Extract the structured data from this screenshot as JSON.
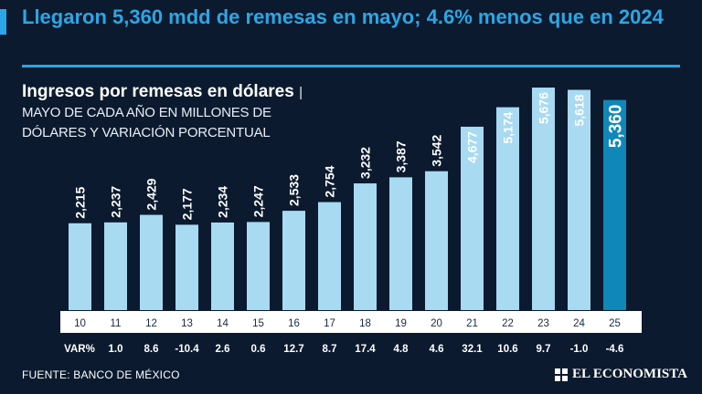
{
  "headline": "Llegaron 5,360 mdd de remesas en mayo; 4.6% menos que en 2024",
  "source": "FUENTE: BANCO DE MÉXICO",
  "brand": "EL ECONOMISTA",
  "colors": {
    "background": "#0b1a2e",
    "accent": "#2aa7e6",
    "bar": "#a8daf2",
    "bar_highlight": "#0f87b8",
    "axis_band": "#ffffff"
  },
  "chart_data": {
    "type": "bar",
    "title": "Ingresos por remesas en dólares",
    "subtitle": "| MAYO DE CADA AÑO EN MILLONES DE DÓLARES Y VARIACIÓN PORCENTUAL",
    "categories": [
      "10",
      "11",
      "12",
      "13",
      "14",
      "15",
      "16",
      "17",
      "18",
      "19",
      "20",
      "21",
      "22",
      "23",
      "24",
      "25"
    ],
    "values": [
      2215,
      2237,
      2429,
      2177,
      2234,
      2247,
      2533,
      2754,
      3232,
      3387,
      3542,
      4677,
      5174,
      5676,
      5618,
      5360
    ],
    "value_labels": [
      "2,215",
      "2,237",
      "2,429",
      "2,177",
      "2,234",
      "2,247",
      "2,533",
      "2,754",
      "3,232",
      "3,387",
      "3,542",
      "4,677",
      "5,174",
      "5,676",
      "5,618",
      "5,360"
    ],
    "var_header": "VAR%",
    "variation": [
      "1.0",
      "8.6",
      "-10.4",
      "2.6",
      "0.6",
      "12.7",
      "8.7",
      "17.4",
      "4.8",
      "4.6",
      "32.1",
      "10.6",
      "9.7",
      "-1.0",
      "-4.6"
    ],
    "ylim": [
      0,
      6000
    ],
    "highlight_index": 15
  }
}
